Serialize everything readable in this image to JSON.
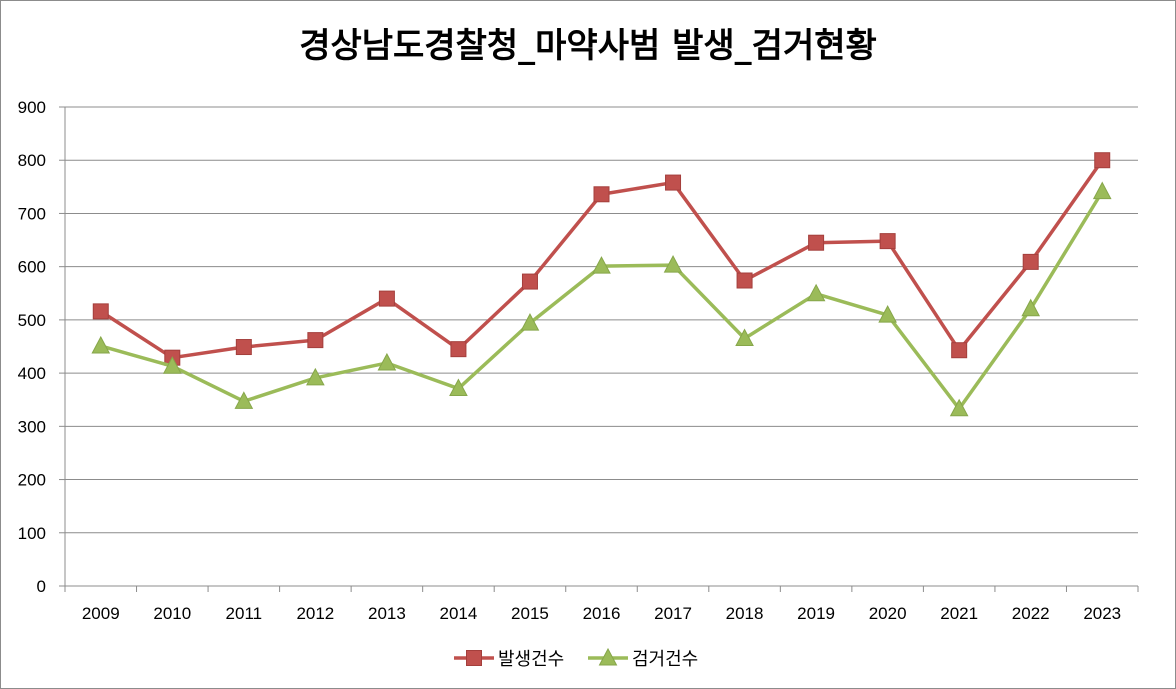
{
  "chart_data": {
    "type": "line",
    "title": "경상남도경찰청_마약사범 발생_검거현황",
    "xlabel": "",
    "ylabel": "",
    "categories": [
      "2009",
      "2010",
      "2011",
      "2012",
      "2013",
      "2014",
      "2015",
      "2016",
      "2017",
      "2018",
      "2019",
      "2020",
      "2021",
      "2022",
      "2023"
    ],
    "ylim": [
      0,
      900
    ],
    "yticks": [
      0,
      100,
      200,
      300,
      400,
      500,
      600,
      700,
      800,
      900
    ],
    "grid": true,
    "legend_position": "bottom",
    "series": [
      {
        "name": "발생건수",
        "color": "#c0504d",
        "marker": "square",
        "values": [
          516,
          429,
          449,
          462,
          540,
          445,
          572,
          736,
          758,
          574,
          645,
          648,
          443,
          609,
          800
        ]
      },
      {
        "name": "검거건수",
        "color": "#9bbb59",
        "marker": "triangle",
        "values": [
          451,
          413,
          347,
          391,
          419,
          371,
          494,
          601,
          603,
          465,
          549,
          509,
          333,
          521,
          741
        ]
      }
    ]
  }
}
